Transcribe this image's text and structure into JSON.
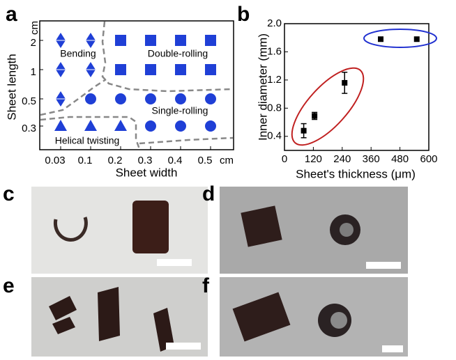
{
  "chart_data": [
    {
      "type": "phase-scatter",
      "panel": "a",
      "x_label": "Sheet width",
      "y_label": "Sheet length",
      "x_unit": "cm",
      "y_unit": "cm",
      "xticks": [
        0.03,
        0.1,
        0.2,
        0.3,
        0.4,
        0.5
      ],
      "yticks": [
        0.3,
        0.5,
        1,
        2
      ],
      "series": [
        {
          "name": "Bending",
          "marker": "diamond",
          "color": "#1f3fd6",
          "x": [
            0.03,
            0.1,
            0.03,
            0.1,
            0.03
          ],
          "y": [
            2,
            2,
            1,
            1,
            0.5
          ]
        },
        {
          "name": "Double-rolling",
          "marker": "square",
          "color": "#1f3fd6",
          "x": [
            0.2,
            0.3,
            0.4,
            0.5,
            0.2,
            0.3,
            0.4,
            0.5
          ],
          "y": [
            2,
            2,
            2,
            2,
            1,
            1,
            1,
            1
          ]
        },
        {
          "name": "Single-rolling",
          "marker": "circle",
          "color": "#1f3fd6",
          "x": [
            0.1,
            0.2,
            0.3,
            0.4,
            0.5,
            0.3,
            0.4,
            0.5
          ],
          "y": [
            0.5,
            0.5,
            0.5,
            0.5,
            0.5,
            0.3,
            0.3,
            0.3
          ]
        },
        {
          "name": "Helical twisting",
          "marker": "triangle",
          "color": "#1f3fd6",
          "x": [
            0.03,
            0.1,
            0.2
          ],
          "y": [
            0.3,
            0.3,
            0.3
          ]
        }
      ]
    },
    {
      "type": "scatter",
      "panel": "b",
      "x_label": "Sheet's thickness (μm)",
      "y_label": "Inner diameter (mm)",
      "xlim": [
        0,
        600
      ],
      "xticks": [
        0,
        120,
        240,
        360,
        480,
        600
      ],
      "ylim": [
        0.2,
        2.0
      ],
      "yticks": [
        0.4,
        0.8,
        {
          "value": 1.2,
          "label": "1.2"
        },
        1.6,
        {
          "value": 2.0,
          "label": "2.0"
        }
      ],
      "x": [
        80,
        125,
        250,
        400,
        550
      ],
      "values": [
        0.48,
        0.69,
        1.16,
        1.78,
        1.78
      ],
      "errors": [
        0.1,
        0.05,
        0.15,
        0,
        0
      ],
      "color": "#000000"
    }
  ],
  "photo_panels": [
    {
      "label": "c"
    },
    {
      "label": "d"
    },
    {
      "label": "e"
    },
    {
      "label": "f"
    }
  ]
}
